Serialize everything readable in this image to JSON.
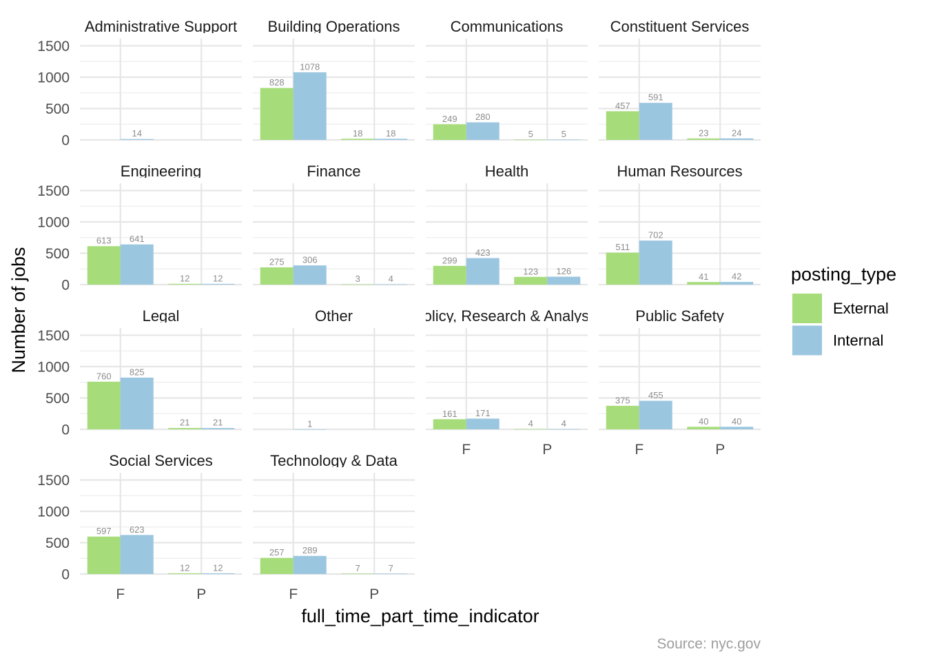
{
  "chart_data": {
    "type": "bar",
    "title": "",
    "xlabel": "full_time_part_time_indicator",
    "ylabel": "Number of jobs",
    "caption": "Source: nyc.gov",
    "categories": [
      "F",
      "P"
    ],
    "ylim": [
      0,
      1600
    ],
    "yticks": [
      0,
      500,
      1000,
      1500
    ],
    "grid": true,
    "legend": {
      "title": "posting_type",
      "position": "right",
      "entries": [
        {
          "name": "External",
          "color": "#a6dc7a"
        },
        {
          "name": "Internal",
          "color": "#9bc6e0"
        }
      ]
    },
    "facets": [
      {
        "title": "Administrative Support",
        "values": {
          "F": {
            "External": null,
            "Internal": 14
          },
          "P": {
            "External": null,
            "Internal": null
          }
        }
      },
      {
        "title": "Building Operations",
        "values": {
          "F": {
            "External": 828,
            "Internal": 1078
          },
          "P": {
            "External": 18,
            "Internal": 18
          }
        }
      },
      {
        "title": "Communications",
        "values": {
          "F": {
            "External": 249,
            "Internal": 280
          },
          "P": {
            "External": 5,
            "Internal": 5
          }
        }
      },
      {
        "title": "Constituent Services",
        "values": {
          "F": {
            "External": 457,
            "Internal": 591
          },
          "P": {
            "External": 23,
            "Internal": 24
          }
        }
      },
      {
        "title": "Engineering",
        "values": {
          "F": {
            "External": 613,
            "Internal": 641
          },
          "P": {
            "External": 12,
            "Internal": 12
          }
        }
      },
      {
        "title": "Finance",
        "values": {
          "F": {
            "External": 275,
            "Internal": 306
          },
          "P": {
            "External": 3,
            "Internal": 4
          }
        }
      },
      {
        "title": "Health",
        "values": {
          "F": {
            "External": 299,
            "Internal": 423
          },
          "P": {
            "External": 123,
            "Internal": 126
          }
        }
      },
      {
        "title": "Human Resources",
        "values": {
          "F": {
            "External": 511,
            "Internal": 702
          },
          "P": {
            "External": 41,
            "Internal": 42
          }
        }
      },
      {
        "title": "Legal",
        "values": {
          "F": {
            "External": 760,
            "Internal": 825
          },
          "P": {
            "External": 21,
            "Internal": 21
          }
        }
      },
      {
        "title": "Other",
        "values": {
          "F": {
            "External": null,
            "Internal": 1
          },
          "P": {
            "External": null,
            "Internal": null
          }
        }
      },
      {
        "title": "Policy, Research & Analysis",
        "values": {
          "F": {
            "External": 161,
            "Internal": 171
          },
          "P": {
            "External": 4,
            "Internal": 4
          }
        }
      },
      {
        "title": "Public Safety",
        "values": {
          "F": {
            "External": 375,
            "Internal": 455
          },
          "P": {
            "External": 40,
            "Internal": 40
          }
        }
      },
      {
        "title": "Social Services",
        "values": {
          "F": {
            "External": 597,
            "Internal": 623
          },
          "P": {
            "External": 12,
            "Internal": 12
          }
        }
      },
      {
        "title": "Technology & Data",
        "values": {
          "F": {
            "External": 257,
            "Internal": 289
          },
          "P": {
            "External": 7,
            "Internal": 7
          }
        }
      }
    ]
  }
}
